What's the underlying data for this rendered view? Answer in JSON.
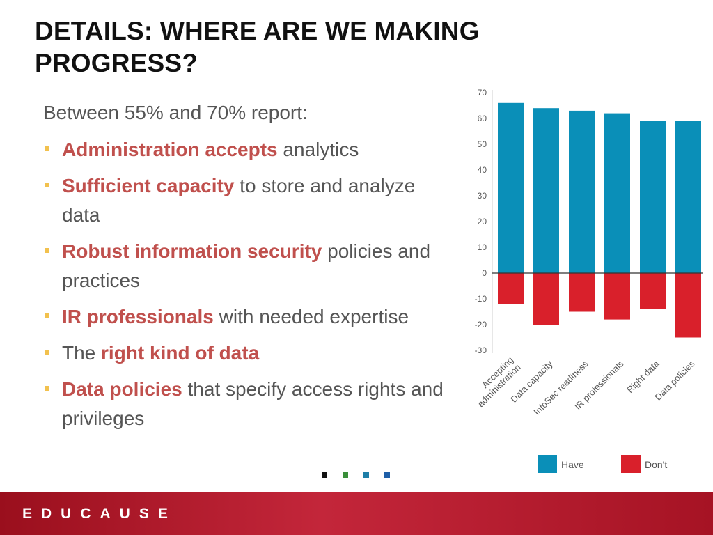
{
  "slide": {
    "title": "DETAILS: WHERE ARE WE MAKING PROGRESS?",
    "intro": "Between 55% and 70% report:",
    "bullets": [
      {
        "highlight": "Administration accepts",
        "rest": " analytics"
      },
      {
        "highlight": "Sufficient capacity",
        "rest": " to store and analyze data"
      },
      {
        "highlight": "Robust information security",
        "rest": " policies and practices"
      },
      {
        "highlight": "IR professionals",
        "rest": " with needed expertise"
      },
      {
        "prefix": "The ",
        "highlight": "right kind of data",
        "rest": ""
      },
      {
        "highlight": "Data policies",
        "rest": " that specify access rights and privileges"
      }
    ],
    "footer_logo": "EDUCAUSE",
    "nav_dot_colors": [
      "#111111",
      "#3a8f3a",
      "#1f7fa8",
      "#1f5fa8"
    ]
  },
  "colors": {
    "have": "#0a8fb8",
    "dont": "#d9202b",
    "highlight": "#c0504d",
    "bullet": "#f2c14e"
  },
  "chart_data": {
    "type": "bar",
    "categories": [
      "Accepting administration",
      "Data capacity",
      "InfoSec readiness",
      "IR professionals",
      "Right data",
      "Data policies"
    ],
    "series": [
      {
        "name": "Have",
        "values": [
          66,
          64,
          63,
          62,
          59,
          59
        ]
      },
      {
        "name": "Don't",
        "values": [
          -12,
          -20,
          -15,
          -18,
          -14,
          -25
        ]
      }
    ],
    "yticks": [
      70,
      60,
      50,
      40,
      30,
      20,
      10,
      0,
      -10,
      -20,
      -30
    ],
    "ylim": [
      -30,
      70
    ],
    "legend_position": "bottom",
    "grid": false
  }
}
